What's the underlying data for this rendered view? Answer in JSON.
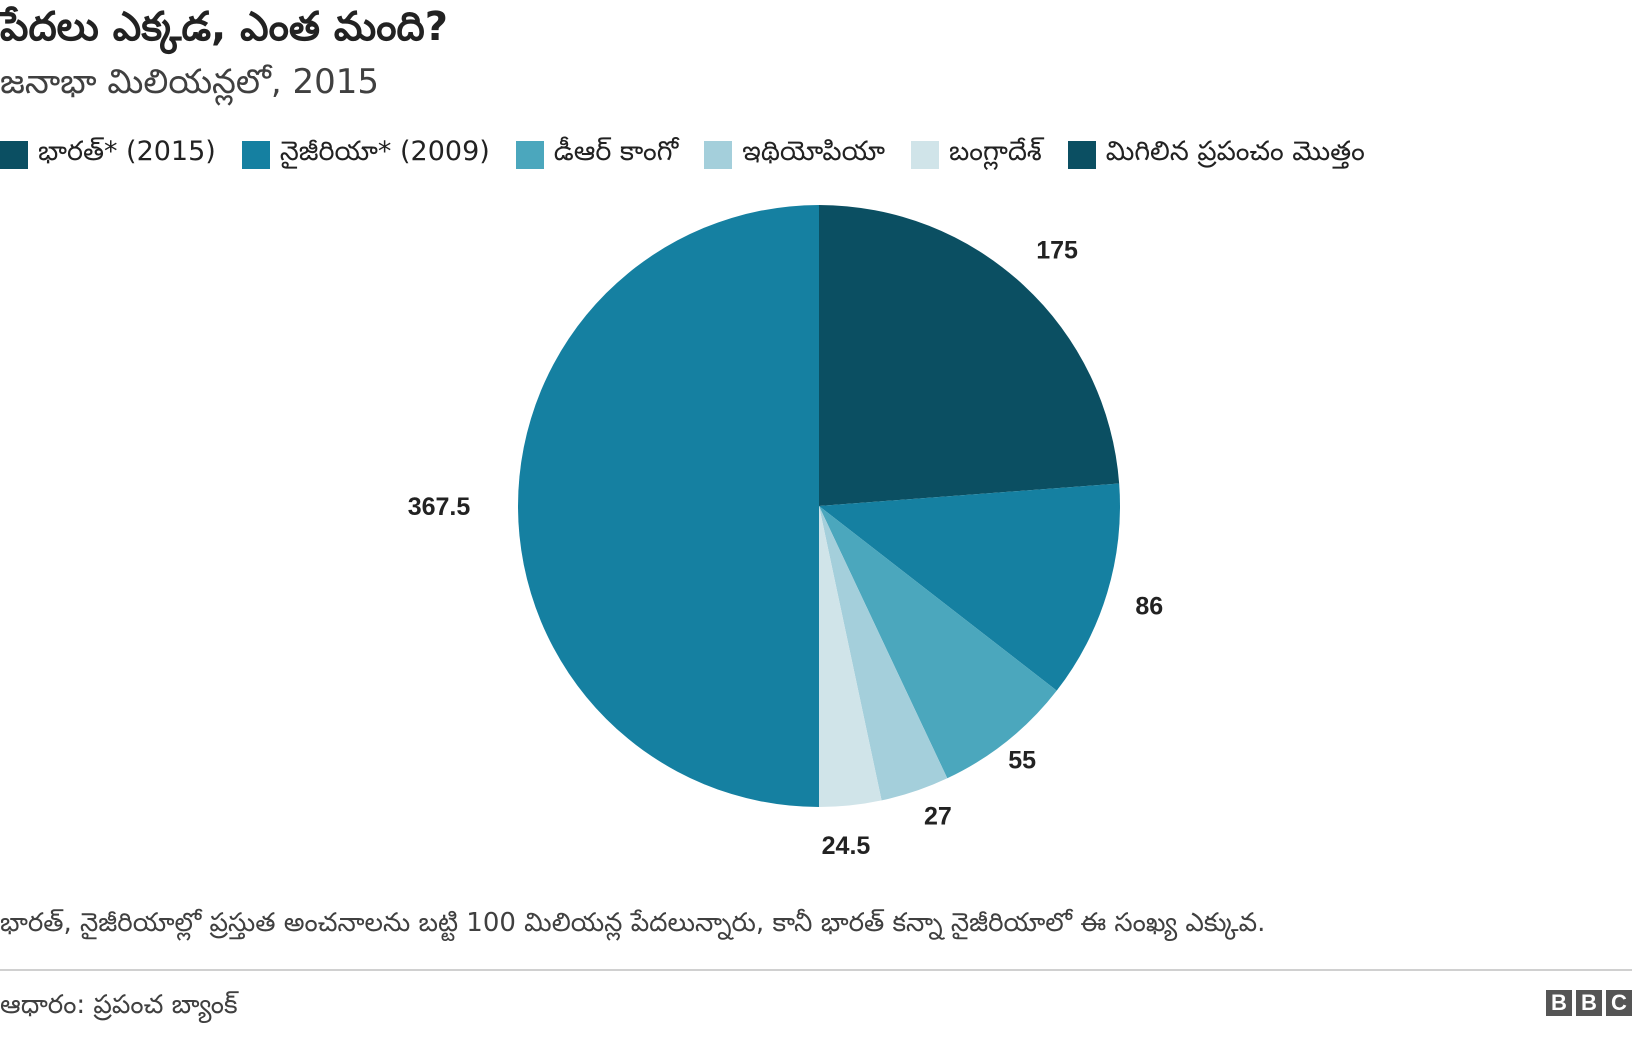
{
  "title": "పేదలు ఎక్కడ, ఎంత మంది?",
  "subtitle": "జనాభా మిలియన్లలో, 2015",
  "footnote": "భారత్, నైజీరియాల్లో ప్రస్తుత అంచనాలను బట్టి 100 మిలియన్ల పేదలున్నారు, కానీ భారత్ కన్నా నైజీరియాలో ఈ సంఖ్య ఎక్కువ.",
  "source": "ఆధారం: ప్రపంచ బ్యాంక్",
  "logo": {
    "letters": [
      "B",
      "B",
      "C"
    ]
  },
  "chart_data": {
    "type": "pie",
    "title": "పేదలు ఎక్కడ, ఎంత మంది?",
    "subtitle": "జనాభా మిలియన్లలో, 2015",
    "legend_position": "top-left",
    "slices": [
      {
        "label": "భారత్* (2015)",
        "value": 175,
        "display": "175",
        "color": "#0b4f62"
      },
      {
        "label": "నైజీరియా* (2009)",
        "value": 86,
        "display": "86",
        "color": "#1580a1"
      },
      {
        "label": "డీఆర్ కాంగో",
        "value": 55,
        "display": "55",
        "color": "#4ba7bd"
      },
      {
        "label": "ఇథియోపియా",
        "value": 27,
        "display": "27",
        "color": "#a4cfdb"
      },
      {
        "label": "బంగ్లాదేశ్",
        "value": 24.5,
        "display": "24.5",
        "color": "#d0e4e9"
      },
      {
        "label": "మిగిలిన ప్రపంచం మొత్తం",
        "value": 367.5,
        "display": "367.5",
        "color": "#1580a1"
      }
    ]
  }
}
